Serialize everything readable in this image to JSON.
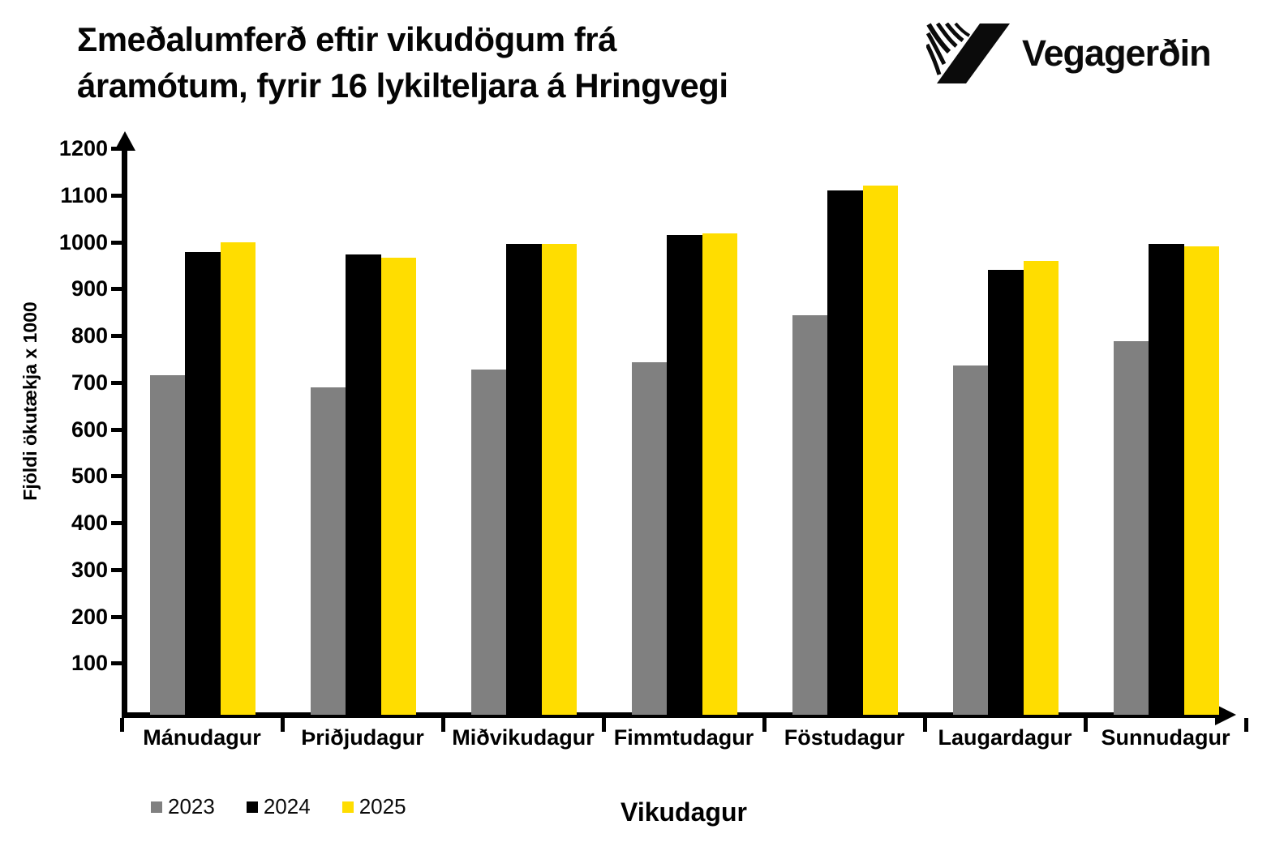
{
  "header": {
    "title_line1": "Σmeðalumferð eftir vikudögum frá",
    "title_line2": "áramótum, fyrir 16 lykilteljara á Hringvegi",
    "logo_text": "Vegagerðin"
  },
  "chart_data": {
    "type": "bar",
    "title": "Σmeðalumferð eftir vikudögum frá áramótum, fyrir 16 lykilteljara á Hringvegi",
    "categories": [
      "Mánudagur",
      "Þriðjudagur",
      "Miðvikudagur",
      "Fimmtudagur",
      "Föstudagur",
      "Laugardagur",
      "Sunnudagur"
    ],
    "series": [
      {
        "name": "2023",
        "color": "#808080",
        "values": [
          716,
          690,
          728,
          742,
          843,
          736,
          788
        ]
      },
      {
        "name": "2024",
        "color": "#000000",
        "values": [
          979,
          973,
          995,
          1015,
          1110,
          941,
          996
        ]
      },
      {
        "name": "2025",
        "color": "#FFDD00",
        "values": [
          1000,
          967,
          996,
          1018,
          1120,
          959,
          990
        ]
      }
    ],
    "xlabel": "Vikudagur",
    "ylabel": "Fjöldi ökutækja x 1000",
    "yticks": [
      100,
      200,
      300,
      400,
      500,
      600,
      700,
      800,
      900,
      1000,
      1100,
      1200
    ],
    "ylim": [
      0,
      1200
    ],
    "grid": false,
    "legend_position": "bottom-left"
  }
}
